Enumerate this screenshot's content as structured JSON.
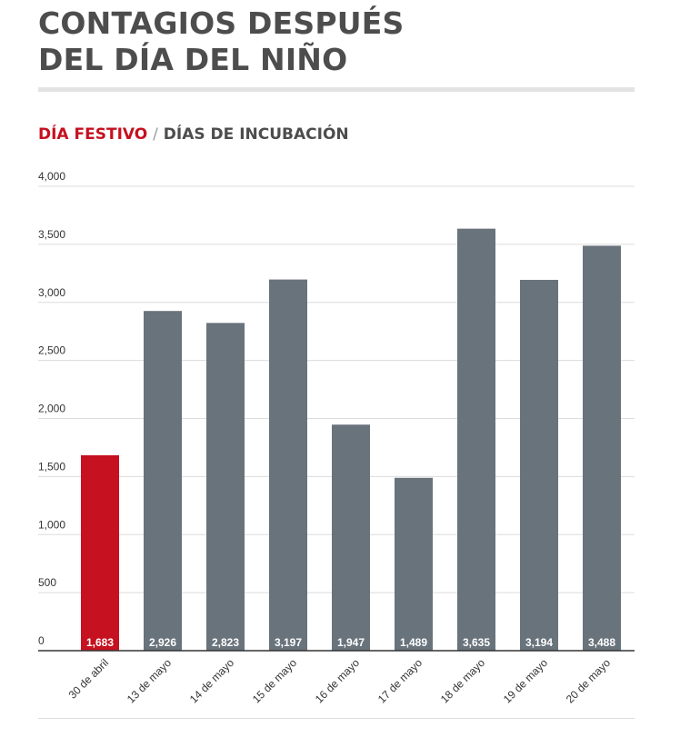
{
  "title_line1": "CONTAGIOS DESPUÉS",
  "title_line2": "DEL DÍA DEL NIÑO",
  "subtitle_highlight": "DÍA FESTIVO",
  "subtitle_separator": "/",
  "subtitle_rest": "DÍAS DE INCUBACIÓN",
  "colors": {
    "highlight": "#c51120",
    "bar": "#69737c",
    "grid": "#dcdcdc",
    "baseline": "#333333"
  },
  "chart_data": {
    "type": "bar",
    "categories": [
      "30 de abril",
      "13 de mayo",
      "14 de mayo",
      "15 de mayo",
      "16 de mayo",
      "17 de mayo",
      "18 de mayo",
      "19 de mayo",
      "20 de mayo"
    ],
    "values": [
      1683,
      2926,
      2823,
      3197,
      1947,
      1489,
      3635,
      3194,
      3488
    ],
    "data_labels": [
      "1,683",
      "2,926",
      "2,823",
      "3,197",
      "1,947",
      "1,489",
      "3,635",
      "3,194",
      "3,488"
    ],
    "highlighted_index": 0,
    "yticks": [
      0,
      500,
      1000,
      1500,
      2000,
      2500,
      3000,
      3500,
      4000
    ],
    "ytick_labels": [
      "0",
      "500",
      "1,000",
      "1,500",
      "2,000",
      "2,500",
      "3,000",
      "3,500",
      "4,000"
    ],
    "ylim": [
      0,
      4000
    ],
    "grid": true,
    "xlabel": "",
    "ylabel": ""
  }
}
